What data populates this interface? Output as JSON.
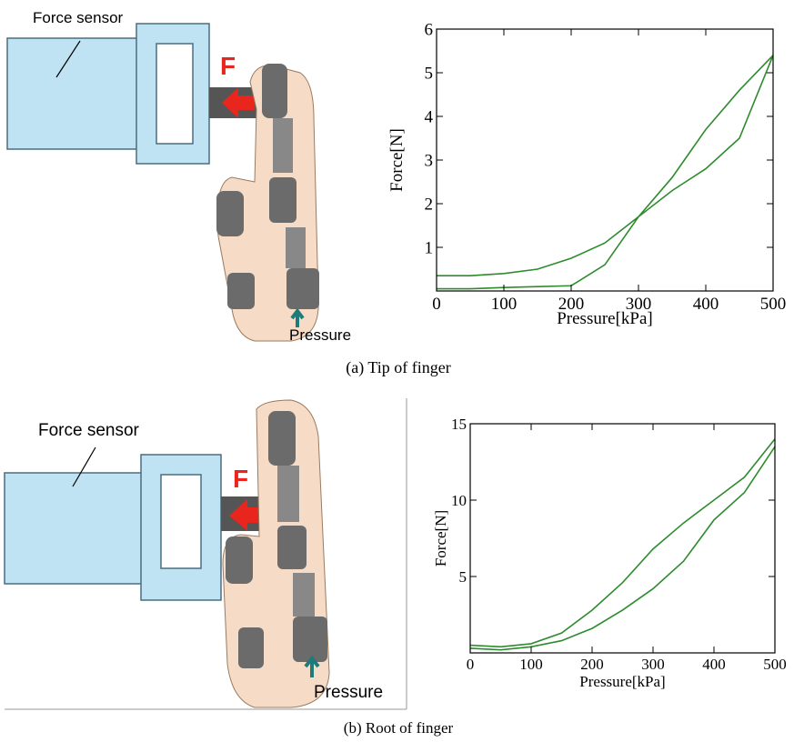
{
  "chart_data": [
    {
      "type": "line",
      "x_label": "Pressure[kPa]",
      "y_label": "Force[N]",
      "x": [
        0,
        50,
        100,
        150,
        200,
        250,
        300,
        350,
        400,
        450,
        500
      ],
      "series": [
        {
          "color": "#2e8b2e",
          "values": [
            0.05,
            0.05,
            0.08,
            0.1,
            0.12,
            0.6,
            1.7,
            2.3,
            2.8,
            3.5,
            5.4
          ]
        },
        {
          "color": "#2e8b2e",
          "values": [
            0.35,
            0.35,
            0.4,
            0.5,
            0.75,
            1.1,
            1.7,
            2.6,
            3.7,
            4.6,
            5.4
          ]
        }
      ],
      "xlim": [
        0,
        500
      ],
      "xticks": [
        0,
        100,
        200,
        300,
        400,
        500
      ],
      "ylim": [
        0,
        6
      ],
      "yticks": [
        1,
        2,
        3,
        4,
        5,
        6
      ]
    },
    {
      "type": "line",
      "x_label": "Pressure[kPa]",
      "y_label": "Force[N]",
      "x": [
        0,
        50,
        100,
        150,
        200,
        250,
        300,
        350,
        400,
        450,
        500
      ],
      "series": [
        {
          "color": "#2e8b2e",
          "values": [
            0.5,
            0.4,
            0.6,
            1.3,
            2.8,
            4.6,
            6.8,
            8.5,
            10.0,
            11.5,
            14.0
          ]
        },
        {
          "color": "#2e8b2e",
          "values": [
            0.3,
            0.2,
            0.4,
            0.8,
            1.6,
            2.8,
            4.2,
            6.0,
            8.7,
            10.5,
            13.5
          ]
        }
      ],
      "xlim": [
        0,
        500
      ],
      "xticks": [
        0,
        100,
        200,
        300,
        400,
        500
      ],
      "ylim": [
        0,
        15
      ],
      "yticks": [
        5,
        10,
        15
      ]
    }
  ],
  "figure": {
    "panels": [
      {
        "diagram": {
          "sensor_label": "Force sensor",
          "force_label": "F",
          "pressure_label": "Pressure"
        },
        "caption": "(a) Tip of finger"
      },
      {
        "diagram": {
          "sensor_label": "Force sensor",
          "force_label": "F",
          "pressure_label": "Pressure"
        },
        "caption": "(b) Root of finger"
      }
    ]
  }
}
